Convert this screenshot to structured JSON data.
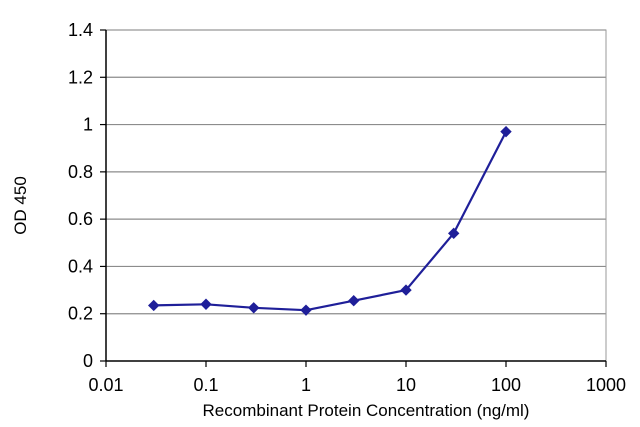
{
  "chart_data": {
    "type": "line",
    "title": "",
    "xlabel": "Recombinant Protein Concentration (ng/ml)",
    "ylabel": "OD 450",
    "xscale": "log",
    "xlim": [
      0.01,
      1000
    ],
    "ylim": [
      0,
      1.4
    ],
    "xticks": [
      "0.01",
      "0.1",
      "1",
      "10",
      "100",
      "1000"
    ],
    "yticks": [
      "0",
      "0.2",
      "0.4",
      "0.6",
      "0.8",
      "1",
      "1.2",
      "1.4"
    ],
    "grid": "horizontal",
    "legend": "none",
    "series": [
      {
        "x": [
          0.03,
          0.1,
          0.3,
          1,
          3,
          10,
          30,
          100
        ],
        "y": [
          0.235,
          0.24,
          0.225,
          0.215,
          0.255,
          0.3,
          0.54,
          0.97
        ],
        "color": "#1f1f99",
        "marker": "diamond"
      }
    ],
    "colors": {
      "grid": "#8c8c8c",
      "axis": "#000000",
      "plot_border": "#9a9a9a"
    }
  }
}
